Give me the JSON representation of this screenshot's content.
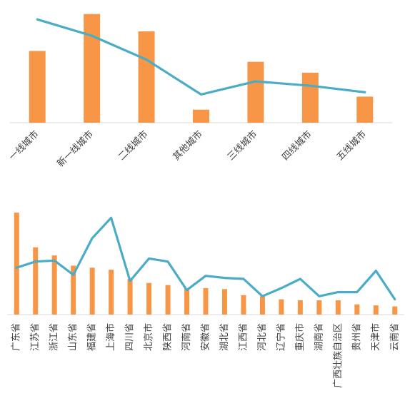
{
  "chart_data": [
    {
      "type": "bar",
      "series_styles": {
        "bar_color": "#F79646",
        "line_color": "#4BACC6"
      },
      "categories": [
        "一线城市",
        "新一线城市",
        "二线城市",
        "其他城市",
        "三线城市",
        "四线城市",
        "五线城市"
      ],
      "bars": [
        0.66,
        1.0,
        0.84,
        0.12,
        0.56,
        0.46,
        0.24
      ],
      "line": [
        0.95,
        0.8,
        0.58,
        0.26,
        0.38,
        0.34,
        0.28
      ],
      "ylim": [
        0,
        1.05
      ],
      "grid": false,
      "legend": false
    },
    {
      "type": "bar",
      "series_styles": {
        "bar_color": "#F79646",
        "line_color": "#4BACC6"
      },
      "categories": [
        "广东省",
        "江苏省",
        "浙江省",
        "山东省",
        "福建省",
        "上海市",
        "四川省",
        "北京市",
        "陕西省",
        "河南省",
        "安徽省",
        "湖北省",
        "江西省",
        "河北省",
        "辽宁省",
        "重庆市",
        "湖南省",
        "广西壮族自治区",
        "贵州省",
        "天津市",
        "云南省"
      ],
      "bars": [
        1.0,
        0.66,
        0.58,
        0.48,
        0.46,
        0.44,
        0.35,
        0.31,
        0.29,
        0.25,
        0.26,
        0.25,
        0.19,
        0.18,
        0.15,
        0.14,
        0.14,
        0.14,
        0.1,
        0.09,
        0.08
      ],
      "line": [
        0.46,
        0.52,
        0.53,
        0.39,
        0.75,
        0.95,
        0.33,
        0.55,
        0.52,
        0.24,
        0.38,
        0.36,
        0.35,
        0.18,
        0.26,
        0.35,
        0.18,
        0.22,
        0.22,
        0.43,
        0.15
      ],
      "ylim": [
        0,
        1.05
      ],
      "grid": false,
      "legend": false
    }
  ]
}
